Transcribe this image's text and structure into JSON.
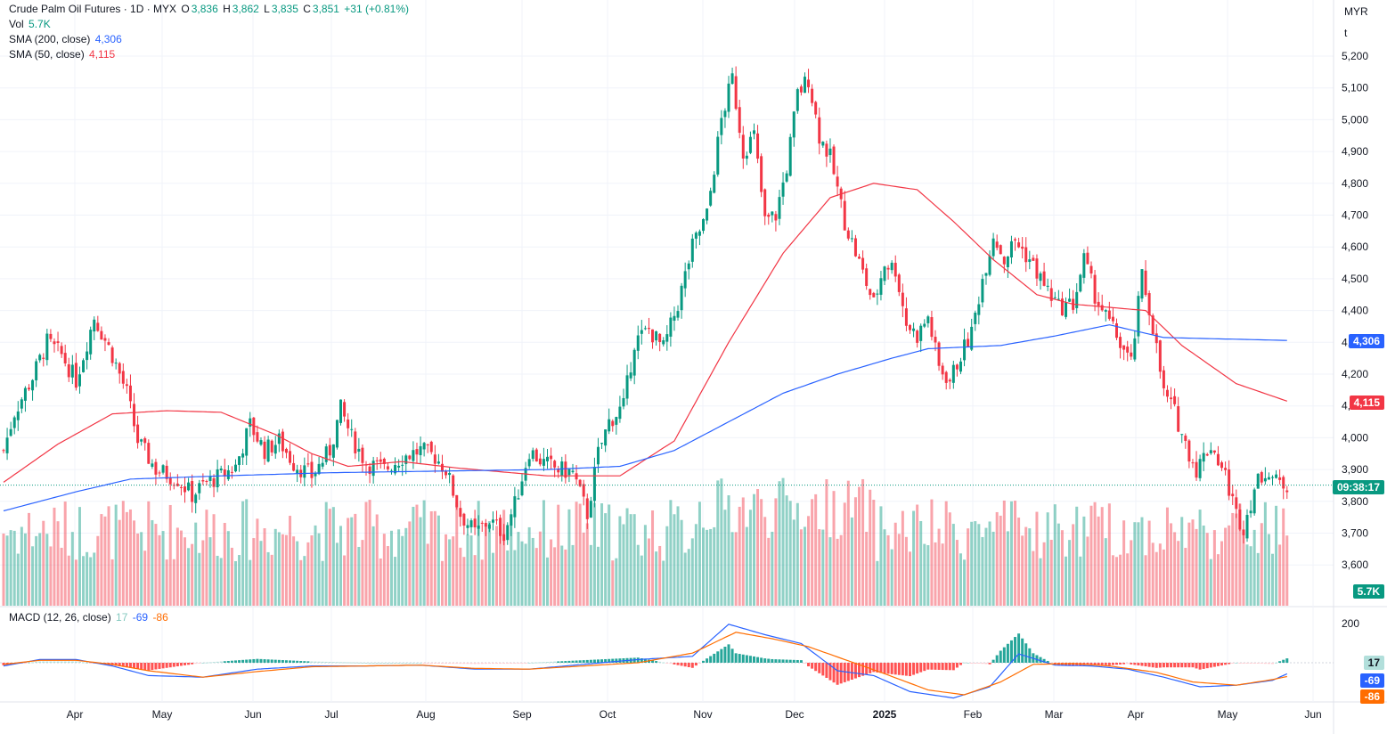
{
  "header": {
    "symbol": "Crude Palm Oil Futures · 1D · MYX",
    "o_label": "O",
    "o_value": "3,836",
    "h_label": "H",
    "h_value": "3,862",
    "l_label": "L",
    "l_value": "3,835",
    "c_label": "C",
    "c_value": "3,851",
    "change": "+31 (+0.81%)"
  },
  "legend": {
    "vol_label": "Vol",
    "vol_value": "5.7K",
    "sma200_label": "SMA (200, close)",
    "sma200_value": "4,306",
    "sma50_label": "SMA (50, close)",
    "sma50_value": "4,115",
    "macd_label": "MACD (12, 26, close)",
    "macd_hist": "17",
    "macd_line": "-69",
    "macd_signal": "-86"
  },
  "scale": {
    "currency": "MYR",
    "unit": "t"
  },
  "tags": {
    "sma200": "4,306",
    "sma50": "4,115",
    "countdown": "09:38:17",
    "volume": "5.7K",
    "macd_hist": "17",
    "macd_line": "-69",
    "macd_signal": "-86"
  },
  "colors": {
    "up": "#089981",
    "down": "#f23645",
    "sma200": "#2962ff",
    "sma50": "#f23645",
    "macd": "#2962ff",
    "signal": "#ff6d00"
  },
  "chart_data": {
    "type": "candlestick",
    "y_ticks": [
      "5,200",
      "5,100",
      "5,000",
      "4,900",
      "4,800",
      "4,700",
      "4,600",
      "4,500",
      "4,400",
      "4,300",
      "4,200",
      "4,100",
      "4,000",
      "3,900",
      "3,800",
      "3,700",
      "3,600"
    ],
    "ylim": [
      3580,
      5250
    ],
    "x_labels": [
      "Apr",
      "May",
      "Jun",
      "Jul",
      "Aug",
      "Sep",
      "Oct",
      "Nov",
      "Dec",
      "2025",
      "Feb",
      "Mar",
      "Apr",
      "May",
      "Jun"
    ],
    "price_anchors": [
      [
        0,
        3960
      ],
      [
        3,
        4080
      ],
      [
        8,
        4190
      ],
      [
        12,
        4300
      ],
      [
        16,
        4260
      ],
      [
        20,
        4180
      ],
      [
        25,
        4380
      ],
      [
        30,
        4260
      ],
      [
        34,
        4140
      ],
      [
        37,
        3990
      ],
      [
        42,
        3900
      ],
      [
        48,
        3870
      ],
      [
        52,
        3820
      ],
      [
        56,
        3860
      ],
      [
        60,
        3880
      ],
      [
        64,
        3910
      ],
      [
        68,
        4040
      ],
      [
        72,
        3960
      ],
      [
        76,
        3990
      ],
      [
        80,
        3920
      ],
      [
        85,
        3880
      ],
      [
        90,
        3960
      ],
      [
        93,
        4090
      ],
      [
        96,
        4000
      ],
      [
        100,
        3920
      ],
      [
        105,
        3900
      ],
      [
        110,
        3940
      ],
      [
        115,
        3960
      ],
      [
        119,
        3940
      ],
      [
        122,
        3900
      ],
      [
        126,
        3760
      ],
      [
        130,
        3700
      ],
      [
        134,
        3740
      ],
      [
        138,
        3700
      ],
      [
        141,
        3790
      ],
      [
        145,
        3960
      ],
      [
        149,
        3920
      ],
      [
        153,
        3900
      ],
      [
        157,
        3890
      ],
      [
        161,
        3760
      ],
      [
        164,
        3950
      ],
      [
        167,
        4050
      ],
      [
        171,
        4100
      ],
      [
        174,
        4300
      ],
      [
        178,
        4340
      ],
      [
        182,
        4280
      ],
      [
        186,
        4420
      ],
      [
        190,
        4600
      ],
      [
        194,
        4700
      ],
      [
        198,
        5000
      ],
      [
        201,
        5130
      ],
      [
        204,
        4900
      ],
      [
        207,
        4950
      ],
      [
        210,
        4680
      ],
      [
        213,
        4700
      ],
      [
        216,
        4850
      ],
      [
        219,
        5080
      ],
      [
        222,
        5130
      ],
      [
        225,
        4950
      ],
      [
        228,
        4880
      ],
      [
        232,
        4680
      ],
      [
        236,
        4550
      ],
      [
        240,
        4420
      ],
      [
        243,
        4550
      ],
      [
        246,
        4530
      ],
      [
        249,
        4360
      ],
      [
        252,
        4320
      ],
      [
        255,
        4380
      ],
      [
        258,
        4220
      ],
      [
        261,
        4180
      ],
      [
        264,
        4260
      ],
      [
        267,
        4330
      ],
      [
        270,
        4500
      ],
      [
        273,
        4640
      ],
      [
        276,
        4560
      ],
      [
        279,
        4620
      ],
      [
        283,
        4560
      ],
      [
        287,
        4480
      ],
      [
        291,
        4410
      ],
      [
        295,
        4420
      ],
      [
        298,
        4560
      ],
      [
        301,
        4450
      ],
      [
        304,
        4380
      ],
      [
        307,
        4320
      ],
      [
        311,
        4230
      ],
      [
        314,
        4510
      ],
      [
        317,
        4350
      ],
      [
        320,
        4140
      ],
      [
        323,
        4080
      ],
      [
        326,
        3980
      ],
      [
        329,
        3900
      ],
      [
        333,
        3980
      ],
      [
        337,
        3880
      ],
      [
        340,
        3760
      ],
      [
        342,
        3720
      ],
      [
        345,
        3840
      ],
      [
        348,
        3900
      ],
      [
        351,
        3860
      ],
      [
        354,
        3851
      ]
    ],
    "sma50_anchors": [
      [
        0,
        3860
      ],
      [
        15,
        3980
      ],
      [
        30,
        4075
      ],
      [
        45,
        4085
      ],
      [
        60,
        4080
      ],
      [
        75,
        4010
      ],
      [
        85,
        3950
      ],
      [
        95,
        3910
      ],
      [
        110,
        3925
      ],
      [
        125,
        3905
      ],
      [
        140,
        3890
      ],
      [
        150,
        3880
      ],
      [
        160,
        3880
      ],
      [
        170,
        3880
      ],
      [
        185,
        3990
      ],
      [
        200,
        4300
      ],
      [
        215,
        4580
      ],
      [
        228,
        4755
      ],
      [
        240,
        4800
      ],
      [
        252,
        4780
      ],
      [
        262,
        4680
      ],
      [
        273,
        4560
      ],
      [
        285,
        4450
      ],
      [
        295,
        4420
      ],
      [
        305,
        4410
      ],
      [
        315,
        4400
      ],
      [
        325,
        4290
      ],
      [
        340,
        4170
      ],
      [
        354,
        4115
      ]
    ],
    "sma200_anchors": [
      [
        0,
        3770
      ],
      [
        20,
        3830
      ],
      [
        35,
        3870
      ],
      [
        60,
        3880
      ],
      [
        90,
        3890
      ],
      [
        120,
        3895
      ],
      [
        150,
        3900
      ],
      [
        170,
        3910
      ],
      [
        185,
        3960
      ],
      [
        200,
        4050
      ],
      [
        215,
        4140
      ],
      [
        230,
        4200
      ],
      [
        245,
        4250
      ],
      [
        255,
        4280
      ],
      [
        275,
        4290
      ],
      [
        290,
        4320
      ],
      [
        305,
        4355
      ],
      [
        320,
        4315
      ],
      [
        354,
        4306
      ]
    ],
    "macd_anchors": [
      [
        0,
        -20
      ],
      [
        10,
        20
      ],
      [
        20,
        20
      ],
      [
        30,
        -20
      ],
      [
        40,
        -80
      ],
      [
        55,
        -90
      ],
      [
        70,
        -40
      ],
      [
        85,
        -20
      ],
      [
        100,
        -20
      ],
      [
        115,
        -15
      ],
      [
        130,
        -40
      ],
      [
        145,
        -40
      ],
      [
        160,
        -10
      ],
      [
        175,
        20
      ],
      [
        190,
        40
      ],
      [
        200,
        240
      ],
      [
        210,
        175
      ],
      [
        220,
        120
      ],
      [
        230,
        -50
      ],
      [
        240,
        -80
      ],
      [
        250,
        -180
      ],
      [
        262,
        -220
      ],
      [
        272,
        -150
      ],
      [
        280,
        55
      ],
      [
        290,
        -15
      ],
      [
        300,
        -20
      ],
      [
        310,
        -40
      ],
      [
        320,
        -90
      ],
      [
        330,
        -150
      ],
      [
        340,
        -140
      ],
      [
        350,
        -110
      ],
      [
        354,
        -69
      ]
    ],
    "signal_anchors": [
      [
        0,
        -10
      ],
      [
        10,
        15
      ],
      [
        20,
        15
      ],
      [
        30,
        -10
      ],
      [
        40,
        -50
      ],
      [
        55,
        -90
      ],
      [
        70,
        -55
      ],
      [
        85,
        -25
      ],
      [
        100,
        -20
      ],
      [
        115,
        -15
      ],
      [
        130,
        -35
      ],
      [
        145,
        -40
      ],
      [
        160,
        -20
      ],
      [
        175,
        0
      ],
      [
        190,
        60
      ],
      [
        202,
        190
      ],
      [
        212,
        150
      ],
      [
        222,
        100
      ],
      [
        232,
        20
      ],
      [
        242,
        -60
      ],
      [
        255,
        -170
      ],
      [
        265,
        -200
      ],
      [
        275,
        -120
      ],
      [
        284,
        -10
      ],
      [
        295,
        -5
      ],
      [
        305,
        -20
      ],
      [
        318,
        -60
      ],
      [
        328,
        -120
      ],
      [
        340,
        -140
      ],
      [
        350,
        -105
      ],
      [
        354,
        -86
      ]
    ]
  }
}
